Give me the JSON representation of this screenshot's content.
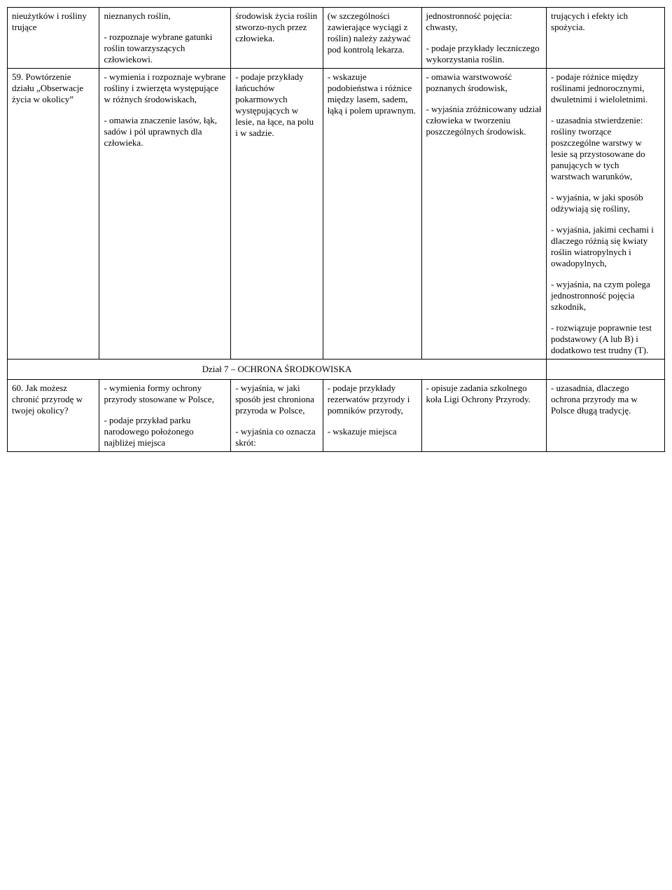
{
  "row1": {
    "c1": [
      "nieużytków i rośliny trujące"
    ],
    "c2": [
      "nieznanych roślin,",
      "- rozpoznaje wybrane gatunki roślin towarzyszących człowiekowi."
    ],
    "c3": [
      "środowisk życia roślin stworzo-nych przez człowieka."
    ],
    "c4": [
      "(w szczególności zawierające wyciągi z roślin) należy zażywać pod kontrolą lekarza."
    ],
    "c5": [
      "jednostronność pojęcia: chwasty,",
      "- podaje przykłady leczniczego wykorzystania roślin."
    ],
    "c6": [
      "trujących i efekty ich spożycia."
    ]
  },
  "row2": {
    "c1": [
      "59. Powtórzenie działu „Obserwacje życia w okolicy”"
    ],
    "c2": [
      "- wymienia i rozpoznaje wybrane rośliny i zwierzęta występujące w różnych środowiskach,",
      "- omawia znaczenie lasów, łąk, sadów i pól uprawnych dla człowieka."
    ],
    "c3": [
      "- podaje przykłady łańcuchów pokarmowych występujących w lesie, na łące, na polu i w sadzie."
    ],
    "c4": [
      "- wskazuje podobieństwa i różnice między lasem, sadem, łąką i polem uprawnym."
    ],
    "c5": [
      "- omawia warstwowość poznanych środowisk,",
      "- wyjaśnia zróżnicowany udział człowieka w tworzeniu poszczególnych środowisk."
    ],
    "c6": [
      "- podaje różnice między roślinami jednorocznymi, dwuletnimi i wieloletnimi.",
      "- uzasadnia stwierdzenie: rośliny tworzące poszczególne warstwy w lesie są przystosowane do panujących w tych warstwach warunków,",
      "- wyjaśnia, w jaki sposób odżywiają się rośliny,",
      "- wyjaśnia, jakimi cechami i dlaczego różnią się kwiaty roślin wiatropylnych i owadopylnych,",
      "- wyjaśnia, na czym polega jednostronność pojęcia szkodnik,",
      "- rozwiązuje poprawnie test podstawowy (A lub B) i dodatkowo test trudny (T)."
    ]
  },
  "sectionHeader": "Dział 7 – OCHRONA ŚRODKOWISKA",
  "row3": {
    "c1": [
      "60. Jak możesz chronić przyrodę w twojej okolicy?"
    ],
    "c2": [
      "- wymienia formy ochrony przyrody stosowane w Polsce,",
      "- podaje przykład parku narodowego położonego najbliżej miejsca"
    ],
    "c3": [
      "- wyjaśnia, w jaki sposób jest chroniona przyroda w Polsce,",
      "- wyjaśnia co oznacza skrót:"
    ],
    "c4": [
      "- podaje przykłady rezerwatów przyrody i pomników przyrody,",
      "- wskazuje miejsca"
    ],
    "c5": [
      "- opisuje zadania szkolnego koła Ligi Ochrony Przyrody."
    ],
    "c6": [
      "- uzasadnia, dlaczego ochrona przyrody ma w Polsce długą tradycję."
    ]
  }
}
